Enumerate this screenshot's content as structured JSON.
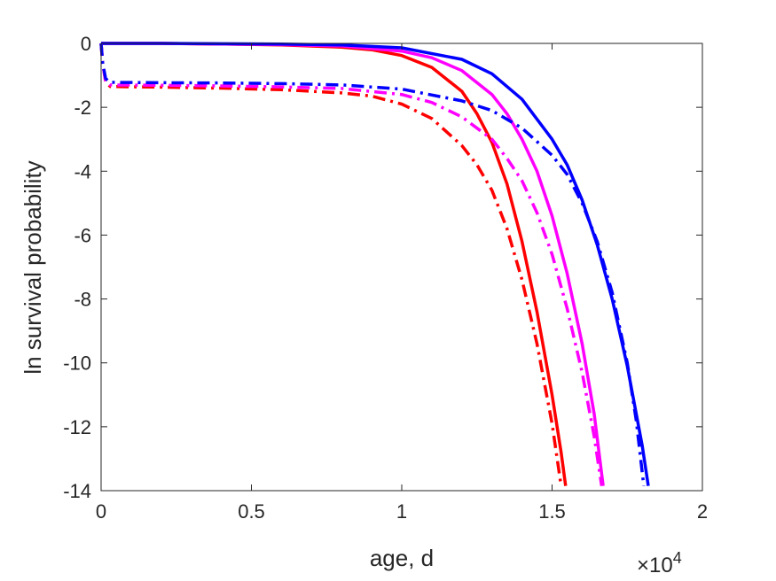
{
  "chart_data": {
    "type": "line",
    "xlabel": "age, d",
    "ylabel": "ln survival probability",
    "x_exponent_label": "×10",
    "x_exponent_power": "4",
    "xlim": [
      0,
      20000
    ],
    "ylim": [
      -14,
      0
    ],
    "xticks": [
      0,
      5000,
      10000,
      15000,
      20000
    ],
    "xtick_labels": [
      "0",
      "0.5",
      "1",
      "1.5",
      "2"
    ],
    "yticks": [
      0,
      -2,
      -4,
      -6,
      -8,
      -10,
      -12,
      -14
    ],
    "ytick_labels": [
      "0",
      "-2",
      "-4",
      "-6",
      "-8",
      "-10",
      "-12",
      "-14"
    ],
    "grid": false,
    "series": [
      {
        "color": "#ff0000",
        "style": "solid",
        "points": [
          [
            0,
            0
          ],
          [
            2000,
            0
          ],
          [
            4000,
            -0.02
          ],
          [
            6000,
            -0.05
          ],
          [
            8000,
            -0.12
          ],
          [
            9000,
            -0.2
          ],
          [
            10000,
            -0.38
          ],
          [
            11000,
            -0.75
          ],
          [
            12000,
            -1.5
          ],
          [
            12500,
            -2.2
          ],
          [
            13000,
            -3.1
          ],
          [
            13500,
            -4.4
          ],
          [
            14000,
            -6.2
          ],
          [
            14500,
            -8.4
          ],
          [
            15000,
            -11.0
          ],
          [
            15300,
            -12.8
          ],
          [
            15450,
            -13.85
          ]
        ]
      },
      {
        "color": "#ff00ff",
        "style": "solid",
        "points": [
          [
            0,
            0
          ],
          [
            2000,
            0
          ],
          [
            4000,
            -0.02
          ],
          [
            6000,
            -0.04
          ],
          [
            8000,
            -0.08
          ],
          [
            10000,
            -0.24
          ],
          [
            11000,
            -0.45
          ],
          [
            12000,
            -0.85
          ],
          [
            13000,
            -1.6
          ],
          [
            13500,
            -2.2
          ],
          [
            14000,
            -3.0
          ],
          [
            14500,
            -4.0
          ],
          [
            15000,
            -5.4
          ],
          [
            15500,
            -7.2
          ],
          [
            16000,
            -9.4
          ],
          [
            16400,
            -11.6
          ],
          [
            16700,
            -13.85
          ]
        ]
      },
      {
        "color": "#0000ff",
        "style": "solid",
        "points": [
          [
            0,
            0
          ],
          [
            2000,
            0
          ],
          [
            4000,
            -0.01
          ],
          [
            6000,
            -0.02
          ],
          [
            8000,
            -0.05
          ],
          [
            10000,
            -0.14
          ],
          [
            12000,
            -0.5
          ],
          [
            13000,
            -0.95
          ],
          [
            14000,
            -1.75
          ],
          [
            15000,
            -3.0
          ],
          [
            15500,
            -3.8
          ],
          [
            16000,
            -4.9
          ],
          [
            16500,
            -6.3
          ],
          [
            17000,
            -8.0
          ],
          [
            17500,
            -10.1
          ],
          [
            18000,
            -12.6
          ],
          [
            18200,
            -13.85
          ]
        ]
      },
      {
        "color": "#ff0000",
        "style": "dashdot",
        "points": [
          [
            0,
            0
          ],
          [
            50,
            -0.6
          ],
          [
            150,
            -1.2
          ],
          [
            300,
            -1.35
          ],
          [
            2000,
            -1.37
          ],
          [
            4000,
            -1.4
          ],
          [
            6000,
            -1.45
          ],
          [
            8000,
            -1.55
          ],
          [
            9000,
            -1.65
          ],
          [
            10000,
            -1.9
          ],
          [
            11000,
            -2.35
          ],
          [
            12000,
            -3.2
          ],
          [
            12500,
            -3.8
          ],
          [
            13000,
            -4.6
          ],
          [
            13500,
            -5.8
          ],
          [
            14000,
            -7.4
          ],
          [
            14500,
            -9.4
          ],
          [
            15000,
            -11.9
          ],
          [
            15300,
            -13.85
          ]
        ]
      },
      {
        "color": "#ff00ff",
        "style": "dashdot",
        "points": [
          [
            0,
            0
          ],
          [
            50,
            -0.6
          ],
          [
            150,
            -1.2
          ],
          [
            300,
            -1.3
          ],
          [
            2000,
            -1.31
          ],
          [
            4000,
            -1.33
          ],
          [
            6000,
            -1.36
          ],
          [
            8000,
            -1.41
          ],
          [
            10000,
            -1.6
          ],
          [
            11000,
            -1.85
          ],
          [
            12000,
            -2.3
          ],
          [
            13000,
            -3.0
          ],
          [
            13500,
            -3.6
          ],
          [
            14000,
            -4.3
          ],
          [
            14500,
            -5.3
          ],
          [
            15000,
            -6.6
          ],
          [
            15500,
            -8.3
          ],
          [
            16000,
            -10.3
          ],
          [
            16400,
            -12.3
          ],
          [
            16650,
            -13.85
          ]
        ]
      },
      {
        "color": "#0000ff",
        "style": "dashdot",
        "points": [
          [
            0,
            0
          ],
          [
            50,
            -0.6
          ],
          [
            150,
            -1.1
          ],
          [
            300,
            -1.22
          ],
          [
            2000,
            -1.23
          ],
          [
            4000,
            -1.24
          ],
          [
            6000,
            -1.26
          ],
          [
            8000,
            -1.3
          ],
          [
            10000,
            -1.43
          ],
          [
            12000,
            -1.8
          ],
          [
            13000,
            -2.1
          ],
          [
            14000,
            -2.65
          ],
          [
            15000,
            -3.5
          ],
          [
            15500,
            -4.1
          ],
          [
            16000,
            -5.0
          ],
          [
            16500,
            -6.2
          ],
          [
            17000,
            -7.8
          ],
          [
            17500,
            -10.0
          ],
          [
            17800,
            -11.8
          ],
          [
            18050,
            -13.85
          ]
        ]
      }
    ]
  }
}
